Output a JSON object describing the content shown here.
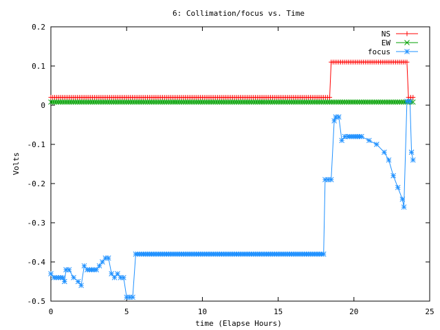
{
  "chart_data": {
    "type": "line",
    "title": "6: Collimation/focus vs. Time",
    "xlabel": "time (Elapse Hours)",
    "ylabel": "Volts",
    "xlim": [
      0,
      25
    ],
    "ylim": [
      -0.5,
      0.2
    ],
    "xticks": [
      0,
      5,
      10,
      15,
      20,
      25
    ],
    "xtick_labels": [
      "0",
      "5",
      "10",
      "15",
      "20",
      "25"
    ],
    "yticks": [
      -0.5,
      -0.4,
      -0.3,
      -0.2,
      -0.1,
      0,
      0.1,
      0.2
    ],
    "ytick_labels": [
      "-0.5",
      "-0.4",
      "-0.3",
      "-0.2",
      "-0.1",
      "0",
      "0.1",
      "0.2"
    ],
    "grid": false,
    "legend_position": "top-right",
    "series": [
      {
        "name": "NS",
        "color": "#ff0000",
        "marker": "plus",
        "x": [
          0,
          1,
          2,
          3,
          4,
          5,
          6,
          7,
          8,
          9,
          10,
          11,
          12,
          13,
          14,
          15,
          16,
          17,
          18,
          18.4,
          18.5,
          19,
          20,
          21,
          22,
          23,
          23.5,
          23.6,
          23.9
        ],
        "y": [
          0.02,
          0.02,
          0.02,
          0.02,
          0.02,
          0.02,
          0.02,
          0.02,
          0.02,
          0.02,
          0.02,
          0.02,
          0.02,
          0.02,
          0.02,
          0.02,
          0.02,
          0.02,
          0.02,
          0.02,
          0.11,
          0.11,
          0.11,
          0.11,
          0.11,
          0.11,
          0.11,
          0.02,
          0.02
        ]
      },
      {
        "name": "EW",
        "color": "#00a000",
        "marker": "cross",
        "x": [
          0,
          1,
          2,
          3,
          4,
          5,
          6,
          7,
          8,
          9,
          10,
          11,
          12,
          13,
          14,
          15,
          16,
          17,
          18,
          19,
          20,
          21,
          22,
          23,
          23.9
        ],
        "y": [
          0.008,
          0.008,
          0.008,
          0.008,
          0.008,
          0.008,
          0.008,
          0.008,
          0.008,
          0.008,
          0.008,
          0.008,
          0.008,
          0.008,
          0.008,
          0.008,
          0.008,
          0.008,
          0.008,
          0.008,
          0.008,
          0.008,
          0.008,
          0.008,
          0.008
        ]
      },
      {
        "name": "focus",
        "color": "#1e90ff",
        "marker": "star",
        "x": [
          0,
          0.2,
          0.5,
          0.8,
          0.9,
          1.0,
          1.2,
          1.5,
          1.8,
          2.0,
          2.2,
          2.4,
          2.7,
          3.0,
          3.2,
          3.4,
          3.6,
          3.8,
          4.0,
          4.2,
          4.4,
          4.6,
          4.8,
          5.0,
          5.2,
          5.4,
          5.6,
          6,
          7,
          8,
          9,
          10,
          11,
          12,
          13,
          14,
          15,
          16,
          17,
          18,
          18.1,
          18.3,
          18.5,
          18.7,
          18.8,
          19.0,
          19.2,
          19.4,
          19.6,
          20.0,
          20.5,
          21.0,
          21.5,
          22.0,
          22.3,
          22.6,
          22.9,
          23.2,
          23.3,
          23.5,
          23.7,
          23.8,
          23.9
        ],
        "y": [
          -0.43,
          -0.44,
          -0.44,
          -0.44,
          -0.45,
          -0.42,
          -0.42,
          -0.44,
          -0.45,
          -0.46,
          -0.41,
          -0.42,
          -0.42,
          -0.42,
          -0.41,
          -0.4,
          -0.39,
          -0.39,
          -0.43,
          -0.44,
          -0.43,
          -0.44,
          -0.44,
          -0.49,
          -0.49,
          -0.49,
          -0.38,
          -0.38,
          -0.38,
          -0.38,
          -0.38,
          -0.38,
          -0.38,
          -0.38,
          -0.38,
          -0.38,
          -0.38,
          -0.38,
          -0.38,
          -0.38,
          -0.19,
          -0.19,
          -0.19,
          -0.04,
          -0.03,
          -0.03,
          -0.09,
          -0.08,
          -0.08,
          -0.08,
          -0.08,
          -0.09,
          -0.1,
          -0.12,
          -0.14,
          -0.18,
          -0.21,
          -0.24,
          -0.26,
          0.01,
          0.01,
          -0.12,
          -0.14
        ]
      }
    ]
  }
}
